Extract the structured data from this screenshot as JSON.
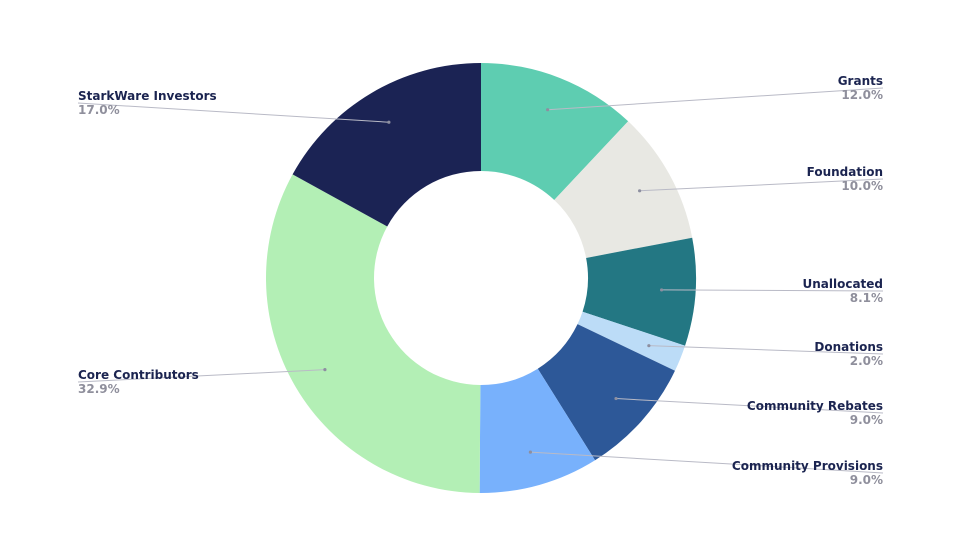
{
  "chart_data": {
    "type": "pie",
    "variant": "donut",
    "title": "",
    "slices": [
      {
        "label": "Grants",
        "value": 12.0,
        "pct_text": "12.0%",
        "color": "#5ecdb1",
        "side": "right"
      },
      {
        "label": "Foundation",
        "value": 10.0,
        "pct_text": "10.0%",
        "color": "#e8e8e3",
        "side": "right"
      },
      {
        "label": "Unallocated",
        "value": 8.1,
        "pct_text": "8.1%",
        "color": "#237783",
        "side": "right"
      },
      {
        "label": "Donations",
        "value": 2.0,
        "pct_text": "2.0%",
        "color": "#bcdcf7",
        "side": "right"
      },
      {
        "label": "Community Rebates",
        "value": 9.0,
        "pct_text": "9.0%",
        "color": "#2d5898",
        "side": "right"
      },
      {
        "label": "Community Provisions",
        "value": 9.0,
        "pct_text": "9.0%",
        "color": "#78b1fc",
        "side": "right"
      },
      {
        "label": "Core Contributors",
        "value": 32.9,
        "pct_text": "32.9%",
        "color": "#b3efb5",
        "side": "left"
      },
      {
        "label": "StarkWare Investors",
        "value": 17.0,
        "pct_text": "17.0%",
        "color": "#1b2354",
        "side": "left"
      }
    ],
    "start_angle": "top",
    "direction": "clockwise",
    "legend": "none"
  }
}
